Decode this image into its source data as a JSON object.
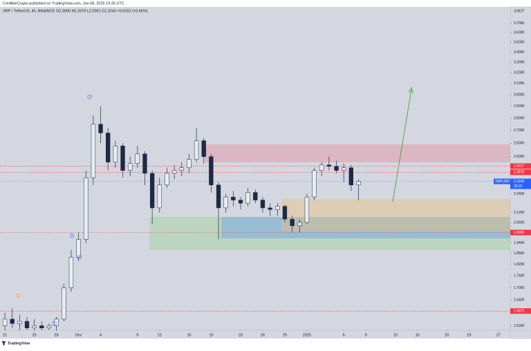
{
  "header": {
    "publisher": "CredibleCrypto published on TradingView.com, Jan 08, 2025 19:26 UTC",
    "brand": "TradingView"
  },
  "chart_data": {
    "type": "candlestick",
    "legend": "XRP / TetherUS, 4h, BINANCE  O2.3090  H2.3379  L2.2001  C2.3243  +0.0152 (+0.66%)",
    "currency": "USDT",
    "log_scale": true,
    "background": "#d4d7df",
    "up_color": "#e9ecf2",
    "down_color": "#1e2a44",
    "xlim": [
      -0.66,
      68.6
    ],
    "ylim": [
      1.5,
      3.79
    ],
    "xticks": [
      {
        "value": 0,
        "label": "21"
      },
      {
        "value": 4,
        "label": "25"
      },
      {
        "value": 7,
        "label": "28"
      },
      {
        "value": 10,
        "label": "Dec"
      },
      {
        "value": 13,
        "label": "4"
      },
      {
        "value": 18,
        "label": "9"
      },
      {
        "value": 21,
        "label": "12"
      },
      {
        "value": 25,
        "label": "16"
      },
      {
        "value": 28,
        "label": "19"
      },
      {
        "value": 32,
        "label": "23"
      },
      {
        "value": 35,
        "label": "26"
      },
      {
        "value": 38,
        "label": "29"
      },
      {
        "value": 41,
        "label": "2025"
      },
      {
        "value": 46,
        "label": "6"
      },
      {
        "value": 49,
        "label": "9"
      },
      {
        "value": 53,
        "label": "13"
      },
      {
        "value": 56,
        "label": "16"
      },
      {
        "value": 60,
        "label": "20"
      },
      {
        "value": 63,
        "label": "23"
      },
      {
        "value": 67,
        "label": "27"
      }
    ],
    "yticks": [
      {
        "value": 3.7,
        "label": "3.7000"
      },
      {
        "value": 3.6,
        "label": "3.6000"
      },
      {
        "value": 3.5,
        "label": "3.5000"
      },
      {
        "value": 3.4,
        "label": "3.4000"
      },
      {
        "value": 3.3,
        "label": "3.3000"
      },
      {
        "value": 3.2,
        "label": "3.2000"
      },
      {
        "value": 3.1,
        "label": "3.1000"
      },
      {
        "value": 3.0,
        "label": "3.0000"
      },
      {
        "value": 2.9,
        "label": "2.9000"
      },
      {
        "value": 2.8,
        "label": "2.8000"
      },
      {
        "value": 2.7,
        "label": "2.7000"
      },
      {
        "value": 2.6,
        "label": "2.6000"
      },
      {
        "value": 2.5,
        "label": "2.5000"
      },
      {
        "value": 2.24,
        "label": "2.2400"
      },
      {
        "value": 2.12,
        "label": "2.1200"
      },
      {
        "value": 2.06,
        "label": "2.0600"
      },
      {
        "value": 1.94,
        "label": "1.9400"
      },
      {
        "value": 1.88,
        "label": "1.8800"
      },
      {
        "value": 1.82,
        "label": "1.8200"
      },
      {
        "value": 1.76,
        "label": "1.7600"
      },
      {
        "value": 1.7,
        "label": "1.7000"
      },
      {
        "value": 1.64,
        "label": "1.6400"
      },
      {
        "value": 1.58,
        "label": "1.5800"
      },
      {
        "value": 1.52,
        "label": "1.5200"
      }
    ],
    "x": [
      0,
      1,
      2,
      3,
      4,
      5,
      6,
      7,
      8,
      9,
      10,
      11,
      12,
      13,
      14,
      15,
      16,
      17,
      18,
      19,
      20,
      21,
      22,
      23,
      24,
      25,
      26,
      27,
      28,
      29,
      30,
      31,
      32,
      33,
      34,
      35,
      36,
      37,
      38,
      39,
      40,
      41,
      42,
      43,
      44,
      45,
      46,
      47,
      48
    ],
    "open": [
      1.52,
      1.55,
      1.53,
      1.54,
      1.51,
      1.52,
      1.51,
      1.52,
      1.55,
      1.7,
      1.86,
      1.96,
      2.35,
      2.75,
      2.68,
      2.46,
      2.58,
      2.4,
      2.45,
      2.52,
      2.38,
      2.15,
      2.3,
      2.38,
      2.4,
      2.42,
      2.48,
      2.62,
      2.5,
      2.3,
      2.15,
      2.22,
      2.2,
      2.18,
      2.25,
      2.2,
      2.15,
      2.14,
      2.16,
      2.08,
      2.04,
      2.06,
      2.22,
      2.4,
      2.44,
      2.43,
      2.4,
      2.42,
      2.3
    ],
    "high": [
      1.58,
      1.6,
      1.57,
      1.56,
      1.55,
      1.54,
      1.53,
      1.56,
      1.72,
      1.9,
      2.0,
      2.4,
      2.82,
      2.9,
      2.72,
      2.62,
      2.6,
      2.5,
      2.58,
      2.54,
      2.4,
      2.35,
      2.42,
      2.44,
      2.46,
      2.52,
      2.72,
      2.64,
      2.52,
      2.32,
      2.24,
      2.26,
      2.22,
      2.28,
      2.27,
      2.22,
      2.18,
      2.18,
      2.17,
      2.1,
      2.08,
      2.24,
      2.42,
      2.46,
      2.5,
      2.47,
      2.45,
      2.44,
      2.34
    ],
    "low": [
      1.5,
      1.51,
      1.5,
      1.5,
      1.5,
      1.5,
      1.5,
      1.5,
      1.54,
      1.68,
      1.84,
      1.94,
      2.3,
      2.6,
      2.4,
      2.42,
      2.35,
      2.36,
      2.42,
      2.3,
      2.05,
      2.12,
      2.28,
      2.34,
      2.36,
      2.38,
      2.46,
      2.45,
      2.25,
      1.96,
      2.12,
      2.16,
      2.14,
      2.16,
      2.18,
      2.12,
      2.1,
      2.1,
      2.06,
      2.0,
      2.0,
      2.05,
      2.2,
      2.36,
      2.4,
      2.38,
      2.32,
      2.26,
      2.2
    ],
    "close": [
      1.55,
      1.53,
      1.54,
      1.51,
      1.52,
      1.51,
      1.52,
      1.55,
      1.7,
      1.86,
      1.96,
      2.35,
      2.75,
      2.68,
      2.46,
      2.58,
      2.4,
      2.45,
      2.52,
      2.38,
      2.15,
      2.3,
      2.38,
      2.4,
      2.42,
      2.48,
      2.62,
      2.5,
      2.3,
      2.15,
      2.22,
      2.2,
      2.18,
      2.25,
      2.2,
      2.15,
      2.14,
      2.16,
      2.08,
      2.04,
      2.06,
      2.22,
      2.4,
      2.44,
      2.43,
      2.4,
      2.42,
      2.3,
      2.3243
    ],
    "price_lines": [
      {
        "value": 2.4317,
        "color": "#f23645"
      },
      {
        "value": 2.3878,
        "color": "#f23645"
      },
      {
        "value": 1.9999,
        "color": "#f23645"
      },
      {
        "value": 1.5873,
        "color": "#f23645"
      }
    ],
    "last_price": {
      "name": "XRPUSDT",
      "value": 2.3243,
      "countdown": "33:22",
      "color": "#2962ff"
    },
    "wave_labels": [
      {
        "text": "5",
        "x": 11.5,
        "y": 2.98
      },
      {
        "text": "3",
        "x": 9.1,
        "y": 1.98
      },
      {
        "text": "4",
        "x": 10.1,
        "y": 1.86
      },
      {
        "text": "1",
        "x": 1.8,
        "y": 1.66
      },
      {
        "text": "2",
        "x": 6.7,
        "y": 1.53
      }
    ]
  }
}
